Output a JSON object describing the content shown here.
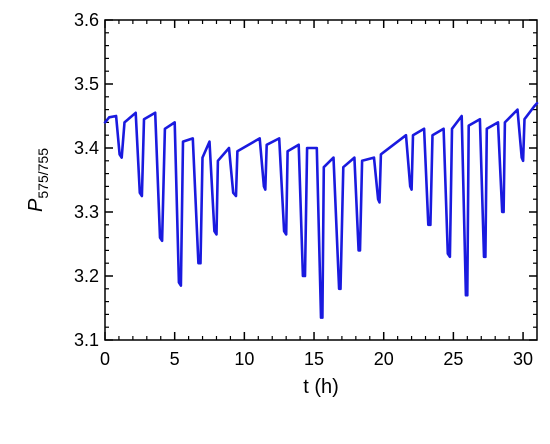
{
  "chart_data": {
    "type": "line",
    "xlabel": "t (h)",
    "ylabel": "P",
    "ylabel_subscript": "575/755",
    "xlim": [
      0,
      31
    ],
    "ylim": [
      3.1,
      3.6
    ],
    "x_ticks": [
      0,
      5,
      10,
      15,
      20,
      25,
      30
    ],
    "x_tick_labels": [
      "0",
      "5",
      "10",
      "15",
      "20",
      "25",
      "30"
    ],
    "y_ticks": [
      3.1,
      3.2,
      3.3,
      3.4,
      3.5,
      3.6
    ],
    "y_tick_labels": [
      "3.1",
      "3.2",
      "3.3",
      "3.4",
      "3.5",
      "3.6"
    ],
    "grid": false,
    "legend": "none",
    "series": [
      {
        "color": "#1a1adf",
        "x": [
          0,
          0.3,
          0.8,
          1.05,
          1.2,
          1.4,
          2.2,
          2.5,
          2.65,
          2.8,
          3.6,
          3.95,
          4.1,
          4.3,
          5.0,
          5.3,
          5.45,
          5.6,
          6.3,
          6.7,
          6.85,
          7.0,
          7.5,
          7.85,
          8.0,
          8.1,
          8.9,
          9.2,
          9.4,
          9.5,
          11.1,
          11.4,
          11.5,
          11.6,
          12.5,
          12.85,
          13.0,
          13.1,
          13.9,
          14.2,
          14.35,
          14.5,
          15.2,
          15.5,
          15.6,
          15.7,
          16.4,
          16.8,
          16.9,
          17.1,
          17.9,
          18.2,
          18.3,
          18.45,
          19.3,
          19.6,
          19.7,
          19.8,
          21.6,
          21.9,
          22.0,
          22.1,
          22.9,
          23.2,
          23.35,
          23.5,
          24.3,
          24.6,
          24.75,
          24.9,
          25.6,
          25.9,
          26.0,
          26.1,
          26.9,
          27.2,
          27.3,
          27.4,
          28.2,
          28.5,
          28.6,
          28.7,
          29.6,
          29.9,
          30.0,
          30.1,
          30.8,
          31.0
        ],
        "y": [
          3.44,
          3.448,
          3.45,
          3.39,
          3.385,
          3.44,
          3.455,
          3.33,
          3.325,
          3.445,
          3.455,
          3.26,
          3.255,
          3.43,
          3.44,
          3.19,
          3.185,
          3.41,
          3.415,
          3.22,
          3.22,
          3.385,
          3.41,
          3.27,
          3.265,
          3.38,
          3.4,
          3.33,
          3.325,
          3.395,
          3.415,
          3.34,
          3.335,
          3.405,
          3.415,
          3.27,
          3.265,
          3.395,
          3.405,
          3.2,
          3.2,
          3.4,
          3.4,
          3.135,
          3.135,
          3.37,
          3.385,
          3.18,
          3.18,
          3.37,
          3.385,
          3.24,
          3.24,
          3.38,
          3.385,
          3.32,
          3.315,
          3.39,
          3.42,
          3.34,
          3.335,
          3.42,
          3.43,
          3.28,
          3.28,
          3.42,
          3.43,
          3.235,
          3.23,
          3.43,
          3.45,
          3.17,
          3.17,
          3.435,
          3.445,
          3.23,
          3.23,
          3.43,
          3.44,
          3.3,
          3.3,
          3.44,
          3.46,
          3.385,
          3.38,
          3.445,
          3.465,
          3.47
        ]
      }
    ]
  }
}
